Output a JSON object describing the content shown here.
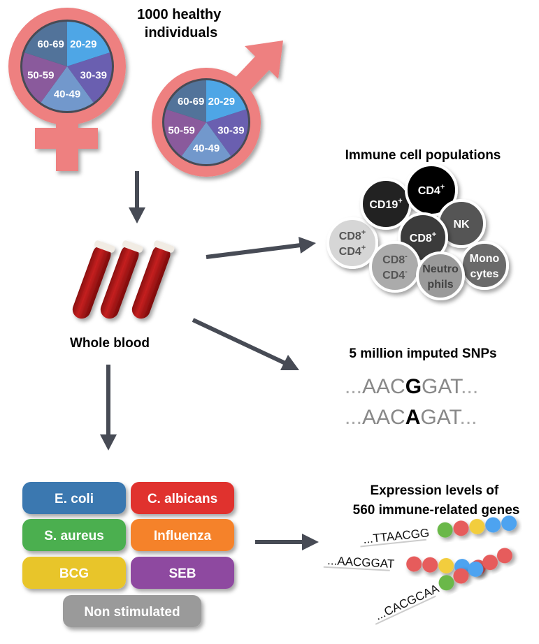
{
  "title": [
    "1000 healthy",
    "individuals"
  ],
  "age_groups": [
    "20-29",
    "30-39",
    "40-49",
    "50-59",
    "60-69"
  ],
  "age_colors": [
    "#4ea6e6",
    "#6a5fb0",
    "#7298cc",
    "#8a5a9c",
    "#52739a"
  ],
  "symbol_color": "#ee8080",
  "sample_label": "Whole blood",
  "immune": {
    "title": "Immune cell populations",
    "cells": [
      {
        "label": [
          "CD8",
          "CD4"
        ],
        "sup": [
          "+",
          "+"
        ],
        "color": "#d6d6d6",
        "text": "#555555"
      },
      {
        "label": [
          "CD19"
        ],
        "sup": [
          "+"
        ],
        "color": "#222222",
        "text": "#ffffff"
      },
      {
        "label": [
          "CD4"
        ],
        "sup": [
          "+"
        ],
        "color": "#000000",
        "text": "#ffffff"
      },
      {
        "label": [
          "NK"
        ],
        "sup": [
          ""
        ],
        "color": "#555555",
        "text": "#ffffff"
      },
      {
        "label": [
          "CD8"
        ],
        "sup": [
          "+"
        ],
        "color": "#3a3a3a",
        "text": "#ffffff"
      },
      {
        "label": [
          "CD8",
          "CD4"
        ],
        "sup": [
          "-",
          "-"
        ],
        "color": "#ababab",
        "text": "#555555"
      },
      {
        "label": [
          "Mono",
          "cytes"
        ],
        "sup": [
          "",
          ""
        ],
        "color": "#6a6a6a",
        "text": "#ffffff"
      },
      {
        "label": [
          "Neutro",
          "phils"
        ],
        "sup": [
          "",
          ""
        ],
        "color": "#9a9a9a",
        "text": "#444444"
      }
    ]
  },
  "snps": {
    "title": "5 million imputed SNPs",
    "seqs": [
      {
        "pre": "...",
        "left": "AAC",
        "snp": "G",
        "right": "GAT",
        "post": "..."
      },
      {
        "pre": "...",
        "left": "AAC",
        "snp": "A",
        "right": "GAT",
        "post": "..."
      }
    ]
  },
  "stimuli": [
    {
      "label": "E. coli",
      "color": "#3b78b0"
    },
    {
      "label": "C. albicans",
      "color": "#e0302f"
    },
    {
      "label": "S. aureus",
      "color": "#4caf50"
    },
    {
      "label": "Influenza",
      "color": "#f5822a"
    },
    {
      "label": "BCG",
      "color": "#e8c52c"
    },
    {
      "label": "SEB",
      "color": "#8e4aa0"
    },
    {
      "label": "Non stimulated",
      "color": "#9a9a9a"
    }
  ],
  "expression": {
    "title": [
      "Expression levels of",
      "560 immune-related genes"
    ],
    "seqs": [
      {
        "text": "...TTAACGG",
        "beads": [
          "#6ab84a",
          "#e65c5c",
          "#f2cd3c",
          "#4da3f0",
          "#4da3f0"
        ]
      },
      {
        "text": "...AACGGAT",
        "beads": [
          "#e65c5c",
          "#e65c5c",
          "#f2cd3c",
          "#4da3f0",
          "#e65c5c"
        ]
      },
      {
        "text": "...CACGCAA",
        "beads": [
          "#6ab84a",
          "#e65c5c",
          "#4da3f0",
          "#e65c5c",
          "#e65c5c"
        ]
      }
    ]
  }
}
